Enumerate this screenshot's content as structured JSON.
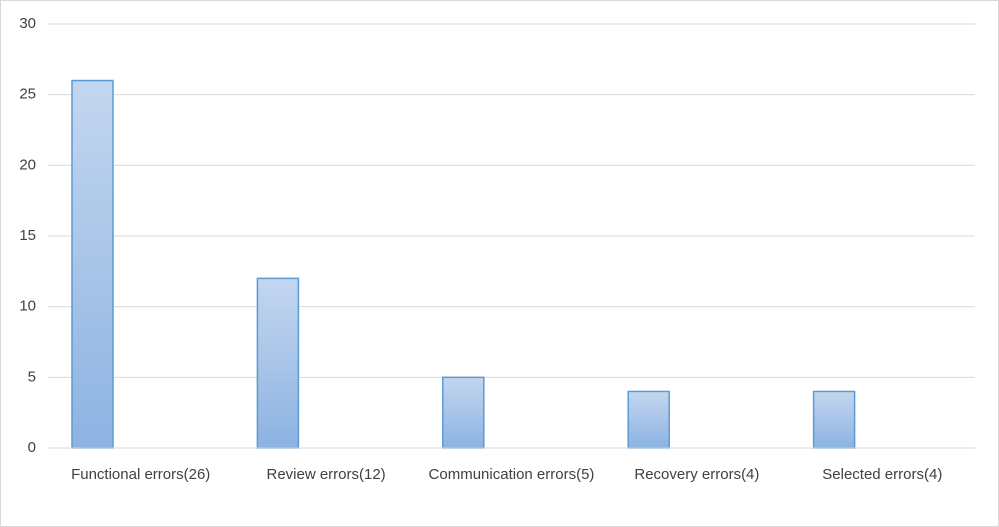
{
  "chart_data": {
    "type": "bar",
    "categories": [
      "Functional errors(26)",
      "Review errors(12)",
      "Communication errors(5)",
      "Recovery errors(4)",
      "Selected errors(4)"
    ],
    "values": [
      26,
      12,
      5,
      4,
      4
    ],
    "color": "#5b9bd5",
    "ylim": [
      0,
      30
    ],
    "yticks": [
      0,
      5,
      10,
      15,
      20,
      25,
      30
    ],
    "grid": true
  }
}
